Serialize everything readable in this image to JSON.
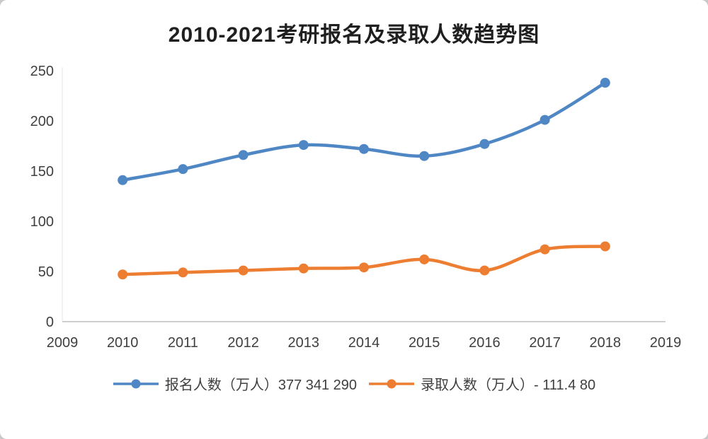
{
  "title": "2010-2021考研报名及录取人数趋势图",
  "chart_data": {
    "type": "line",
    "title": "2010-2021考研报名及录取人数趋势图",
    "x": [
      2010,
      2011,
      2012,
      2013,
      2014,
      2015,
      2016,
      2017,
      2018
    ],
    "series": [
      {
        "name": "报名人数（万人）377 341 290",
        "color": "#4e87c4",
        "values": [
          141,
          152,
          166,
          176,
          172,
          165,
          177,
          201,
          238
        ]
      },
      {
        "name": "录取人数（万人）- 111.4 80",
        "color": "#ed7d31",
        "values": [
          47,
          49,
          51,
          53,
          54,
          62,
          51,
          72,
          75
        ]
      }
    ],
    "x_ticks": [
      2009,
      2010,
      2011,
      2012,
      2013,
      2014,
      2015,
      2016,
      2017,
      2018,
      2019
    ],
    "y_ticks": [
      0,
      50,
      100,
      150,
      200,
      250
    ],
    "xlim": [
      2009,
      2019
    ],
    "ylim": [
      0,
      250
    ],
    "xlabel": "",
    "ylabel": "",
    "grid": false,
    "smooth": true,
    "legend_position": "bottom",
    "axis_color": "#bfbfbf",
    "tick_color": "#3f3f3f"
  }
}
